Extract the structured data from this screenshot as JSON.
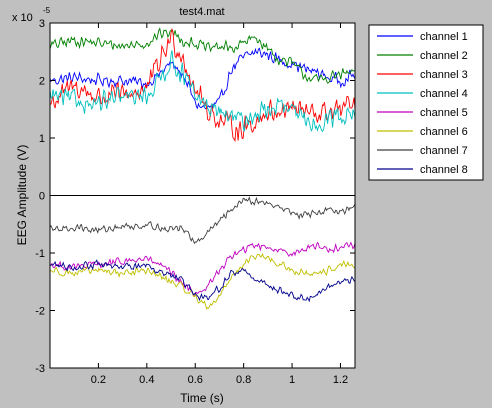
{
  "chart_data": {
    "type": "line",
    "title": "test4.mat",
    "xlabel": "Time (s)",
    "ylabel": "EEG Amplitude (V)",
    "y_exponent_label": {
      "base": "x 10",
      "exp": "-5"
    },
    "xlim": [
      0,
      1.26
    ],
    "ylim": [
      -3,
      3
    ],
    "xticks": [
      0.2,
      0.4,
      0.6,
      0.8,
      1,
      1.2
    ],
    "yticks": [
      -3,
      -2,
      -1,
      0,
      1,
      2,
      3
    ],
    "grid": false,
    "zero_line": true,
    "legend_position": "outside-right-top",
    "series": [
      {
        "name": "channel 1",
        "color": "#0000ff",
        "noise": 0.13,
        "x": [
          0,
          0.1,
          0.2,
          0.3,
          0.4,
          0.45,
          0.5,
          0.55,
          0.6,
          0.65,
          0.7,
          0.75,
          0.8,
          0.85,
          0.9,
          0.95,
          1.0,
          1.05,
          1.1,
          1.15,
          1.2,
          1.26
        ],
        "y": [
          2.0,
          2.05,
          2.0,
          2.0,
          1.95,
          2.1,
          2.3,
          2.1,
          1.6,
          1.5,
          1.6,
          2.2,
          2.4,
          2.5,
          2.45,
          2.35,
          2.3,
          2.2,
          2.15,
          2.05,
          2.0,
          2.1
        ]
      },
      {
        "name": "channel 2",
        "color": "#008000",
        "noise": 0.12,
        "x": [
          0,
          0.1,
          0.2,
          0.3,
          0.4,
          0.45,
          0.5,
          0.55,
          0.6,
          0.65,
          0.7,
          0.75,
          0.8,
          0.85,
          0.9,
          0.95,
          1.0,
          1.05,
          1.1,
          1.15,
          1.2,
          1.26
        ],
        "y": [
          2.6,
          2.7,
          2.65,
          2.6,
          2.65,
          2.8,
          2.85,
          2.7,
          2.65,
          2.55,
          2.6,
          2.55,
          2.65,
          2.75,
          2.55,
          2.35,
          2.3,
          2.1,
          2.0,
          2.05,
          2.1,
          2.15
        ]
      },
      {
        "name": "channel 3",
        "color": "#ff0000",
        "noise": 0.25,
        "x": [
          0,
          0.1,
          0.2,
          0.3,
          0.4,
          0.45,
          0.5,
          0.55,
          0.6,
          0.65,
          0.7,
          0.75,
          0.8,
          0.85,
          0.9,
          0.95,
          1.0,
          1.05,
          1.1,
          1.15,
          1.2,
          1.26
        ],
        "y": [
          1.6,
          1.9,
          1.7,
          1.75,
          1.85,
          2.3,
          2.75,
          2.4,
          1.85,
          1.5,
          1.3,
          1.2,
          1.15,
          1.3,
          1.45,
          1.5,
          1.55,
          1.45,
          1.4,
          1.45,
          1.5,
          1.55
        ]
      },
      {
        "name": "channel 4",
        "color": "#00bfbf",
        "noise": 0.22,
        "x": [
          0,
          0.1,
          0.2,
          0.3,
          0.4,
          0.45,
          0.5,
          0.55,
          0.6,
          0.65,
          0.7,
          0.75,
          0.8,
          0.85,
          0.9,
          0.95,
          1.0,
          1.05,
          1.1,
          1.15,
          1.2,
          1.26
        ],
        "y": [
          1.75,
          1.65,
          1.6,
          1.7,
          1.75,
          2.0,
          2.35,
          2.1,
          1.7,
          1.55,
          1.45,
          1.35,
          1.3,
          1.4,
          1.5,
          1.55,
          1.45,
          1.3,
          1.25,
          1.35,
          1.4,
          1.45
        ]
      },
      {
        "name": "channel 5",
        "color": "#bf00bf",
        "noise": 0.08,
        "x": [
          0,
          0.1,
          0.2,
          0.3,
          0.4,
          0.45,
          0.5,
          0.55,
          0.6,
          0.65,
          0.7,
          0.75,
          0.8,
          0.85,
          0.9,
          0.95,
          1.0,
          1.05,
          1.1,
          1.15,
          1.2,
          1.26
        ],
        "y": [
          -1.2,
          -1.25,
          -1.2,
          -1.15,
          -1.1,
          -1.2,
          -1.35,
          -1.55,
          -1.7,
          -1.6,
          -1.3,
          -1.05,
          -0.95,
          -0.85,
          -0.9,
          -0.95,
          -1.0,
          -0.95,
          -0.85,
          -0.95,
          -0.9,
          -0.85
        ]
      },
      {
        "name": "channel 6",
        "color": "#bfbf00",
        "noise": 0.08,
        "x": [
          0,
          0.1,
          0.2,
          0.3,
          0.4,
          0.45,
          0.5,
          0.55,
          0.6,
          0.65,
          0.7,
          0.75,
          0.8,
          0.85,
          0.9,
          0.95,
          1.0,
          1.05,
          1.1,
          1.15,
          1.2,
          1.26
        ],
        "y": [
          -1.3,
          -1.35,
          -1.3,
          -1.35,
          -1.3,
          -1.4,
          -1.5,
          -1.6,
          -1.75,
          -1.95,
          -1.75,
          -1.4,
          -1.2,
          -1.05,
          -1.1,
          -1.2,
          -1.3,
          -1.35,
          -1.4,
          -1.3,
          -1.2,
          -1.25
        ]
      },
      {
        "name": "channel 7",
        "color": "#404040",
        "noise": 0.08,
        "x": [
          0,
          0.1,
          0.2,
          0.3,
          0.4,
          0.45,
          0.5,
          0.55,
          0.6,
          0.65,
          0.7,
          0.75,
          0.8,
          0.85,
          0.9,
          0.95,
          1.0,
          1.05,
          1.1,
          1.15,
          1.2,
          1.26
        ],
        "y": [
          -0.6,
          -0.55,
          -0.6,
          -0.55,
          -0.5,
          -0.55,
          -0.6,
          -0.55,
          -0.85,
          -0.65,
          -0.45,
          -0.25,
          -0.05,
          -0.1,
          -0.15,
          -0.2,
          -0.3,
          -0.35,
          -0.3,
          -0.25,
          -0.3,
          -0.2
        ]
      },
      {
        "name": "channel 8",
        "color": "#00008b",
        "noise": 0.08,
        "x": [
          0,
          0.1,
          0.2,
          0.3,
          0.4,
          0.45,
          0.5,
          0.55,
          0.6,
          0.65,
          0.7,
          0.75,
          0.8,
          0.85,
          0.9,
          0.95,
          1.0,
          1.05,
          1.1,
          1.15,
          1.2,
          1.26
        ],
        "y": [
          -1.2,
          -1.25,
          -1.2,
          -1.25,
          -1.2,
          -1.3,
          -1.4,
          -1.5,
          -1.75,
          -1.8,
          -1.6,
          -1.35,
          -1.3,
          -1.45,
          -1.55,
          -1.65,
          -1.75,
          -1.8,
          -1.7,
          -1.6,
          -1.5,
          -1.45
        ]
      }
    ]
  }
}
